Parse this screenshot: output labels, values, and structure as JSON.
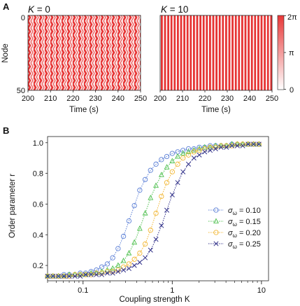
{
  "panel_a": {
    "letter": "A",
    "ylabel": "Node",
    "xlabel": "Time (s)",
    "titles": {
      "k_sym": "K",
      "left_value": "= 0",
      "right_value": "= 10"
    },
    "colorbar": {
      "ticks": [
        "2π",
        "π",
        "0"
      ],
      "colors": [
        "#ffffff",
        "#e83838"
      ]
    }
  },
  "panel_b": {
    "letter": "B"
  },
  "chart_data": [
    {
      "type": "heatmap",
      "title": "K = 0",
      "xlabel": "Time (s)",
      "ylabel": "Node",
      "xlim": [
        200,
        250
      ],
      "ylim": [
        0,
        50
      ],
      "xticks": [
        "200",
        "210",
        "220",
        "230",
        "240",
        "250"
      ],
      "yticks": [
        "0",
        "50"
      ],
      "value_range": [
        "0",
        "2π"
      ],
      "pattern": "desynchronized phases"
    },
    {
      "type": "heatmap",
      "title": "K = 10",
      "xlabel": "Time (s)",
      "xlim": [
        200,
        250
      ],
      "ylim": [
        0,
        50
      ],
      "xticks": [
        "200",
        "210",
        "220",
        "230",
        "240",
        "250"
      ],
      "value_range": [
        "0",
        "2π"
      ],
      "pattern": "synchronized phases"
    },
    {
      "type": "line",
      "xlabel": "Coupling strength K",
      "ylabel": "Order parameter r",
      "xscale": "log",
      "xlim": [
        0.04,
        12
      ],
      "ylim": [
        0.1,
        1.04
      ],
      "xticks": [
        "0.1",
        "1",
        "10"
      ],
      "yticks": [
        "0.2",
        "0.4",
        "0.6",
        "0.8",
        "1.0"
      ],
      "legend_position": "right-center",
      "legend_prefix": "σ",
      "legend_sub": "ω",
      "x": [
        0.04,
        0.046,
        0.053,
        0.061,
        0.07,
        0.081,
        0.093,
        0.107,
        0.123,
        0.141,
        0.162,
        0.187,
        0.215,
        0.247,
        0.284,
        0.327,
        0.376,
        0.432,
        0.497,
        0.571,
        0.657,
        0.756,
        0.869,
        1.0,
        1.15,
        1.32,
        1.52,
        1.75,
        2.01,
        2.31,
        2.66,
        3.06,
        3.52,
        4.05,
        4.66,
        5.36,
        6.16,
        7.09,
        8.15,
        9.37
      ],
      "series": [
        {
          "name": "= 0.10",
          "marker": "circle",
          "color": "#5b7fd6",
          "values": [
            0.13,
            0.13,
            0.13,
            0.14,
            0.14,
            0.14,
            0.15,
            0.15,
            0.16,
            0.17,
            0.19,
            0.21,
            0.25,
            0.31,
            0.39,
            0.49,
            0.59,
            0.69,
            0.76,
            0.82,
            0.86,
            0.89,
            0.91,
            0.93,
            0.94,
            0.95,
            0.96,
            0.96,
            0.97,
            0.97,
            0.98,
            0.98,
            0.98,
            0.98,
            0.99,
            0.99,
            0.99,
            0.99,
            0.99,
            0.99
          ]
        },
        {
          "name": "= 0.15",
          "marker": "triangle",
          "color": "#4fc04f",
          "values": [
            0.13,
            0.13,
            0.13,
            0.13,
            0.14,
            0.14,
            0.14,
            0.14,
            0.15,
            0.15,
            0.16,
            0.17,
            0.18,
            0.2,
            0.23,
            0.28,
            0.35,
            0.44,
            0.54,
            0.64,
            0.72,
            0.79,
            0.84,
            0.88,
            0.91,
            0.93,
            0.94,
            0.95,
            0.96,
            0.97,
            0.97,
            0.98,
            0.98,
            0.98,
            0.99,
            0.99,
            0.99,
            0.99,
            0.99,
            0.99
          ]
        },
        {
          "name": "= 0.20",
          "marker": "circle",
          "color": "#f2b632",
          "values": [
            0.13,
            0.13,
            0.13,
            0.13,
            0.13,
            0.14,
            0.14,
            0.14,
            0.14,
            0.15,
            0.15,
            0.16,
            0.16,
            0.17,
            0.19,
            0.21,
            0.24,
            0.28,
            0.34,
            0.43,
            0.54,
            0.65,
            0.74,
            0.81,
            0.86,
            0.9,
            0.92,
            0.94,
            0.95,
            0.96,
            0.97,
            0.97,
            0.98,
            0.98,
            0.98,
            0.99,
            0.99,
            0.99,
            0.99,
            0.99
          ]
        },
        {
          "name": "= 0.25",
          "marker": "x",
          "color": "#33338a",
          "values": [
            0.13,
            0.13,
            0.13,
            0.13,
            0.13,
            0.13,
            0.13,
            0.14,
            0.14,
            0.14,
            0.14,
            0.15,
            0.15,
            0.16,
            0.17,
            0.18,
            0.2,
            0.22,
            0.25,
            0.3,
            0.37,
            0.46,
            0.56,
            0.66,
            0.74,
            0.81,
            0.86,
            0.9,
            0.92,
            0.94,
            0.95,
            0.96,
            0.97,
            0.97,
            0.98,
            0.98,
            0.98,
            0.99,
            0.99,
            0.99
          ]
        }
      ]
    }
  ]
}
